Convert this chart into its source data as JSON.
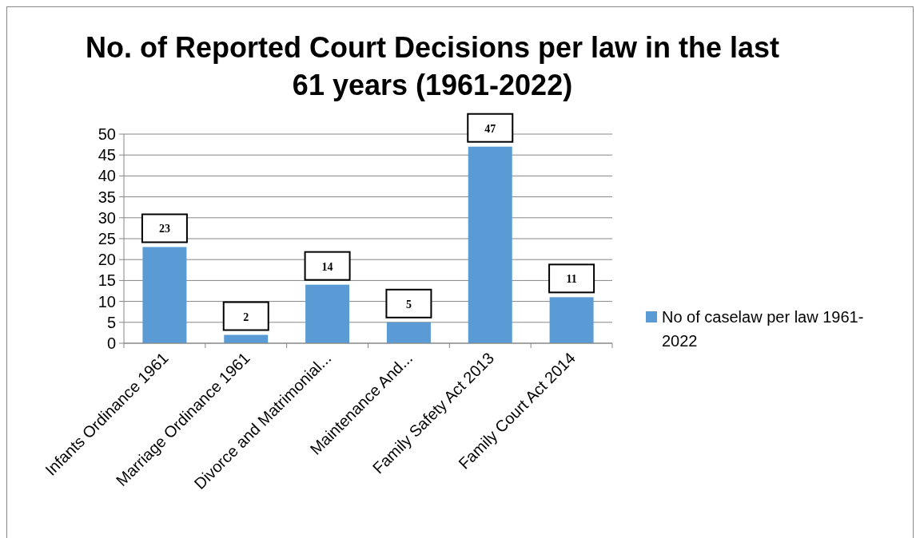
{
  "chart_data": {
    "type": "bar",
    "title": "No. of Reported Court Decisions per law in the last 61 years (1961-2022)",
    "categories": [
      "Infants Ordinance 1961",
      "Marriage Ordinance 1961",
      "Divorce and Matrimonial...",
      "Maintenance And...",
      "Family Safety Act 2013",
      "Family Court Act 2014"
    ],
    "series": [
      {
        "name": "No of caselaw per law 1961-2022",
        "color": "#5b9bd5",
        "values": [
          23,
          2,
          14,
          5,
          47,
          11
        ]
      }
    ],
    "ylim": [
      0,
      50
    ],
    "yticks": [
      0,
      5,
      10,
      15,
      20,
      25,
      30,
      35,
      40,
      45,
      50
    ],
    "grid": "y",
    "legend": "right",
    "data_labels": true
  }
}
